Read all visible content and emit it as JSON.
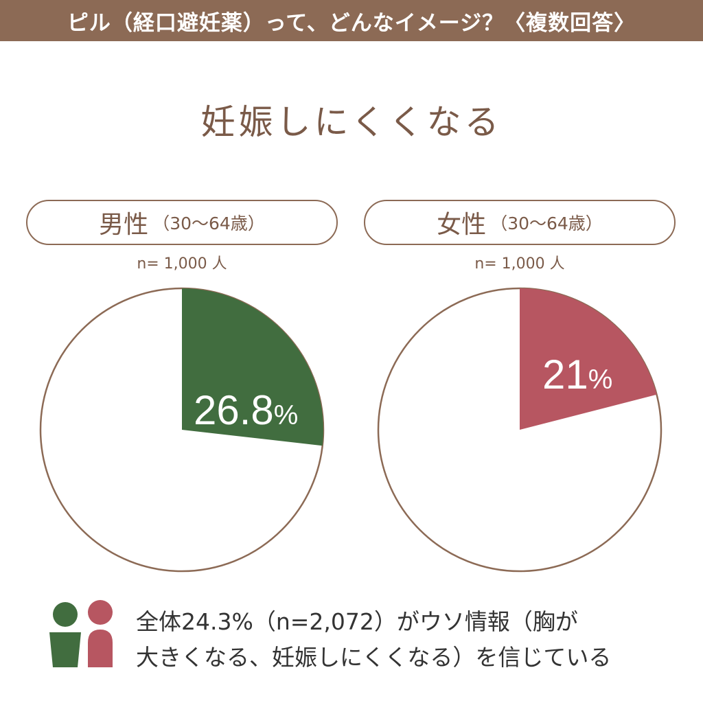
{
  "header": {
    "title": "ピル（経口避妊薬）って、どんなイメージ？〈複数回答〉"
  },
  "main_title": "妊娠しにくくなる",
  "groups": [
    {
      "label": "男性",
      "age_range": "（30〜64歳）",
      "sample": "n= 1,000 人",
      "value_label": "26.8",
      "unit": "%"
    },
    {
      "label": "女性",
      "age_range": "（30〜64歳）",
      "sample": "n= 1,000 人",
      "value_label": "21",
      "unit": "%"
    }
  ],
  "footer": {
    "line1": "全体24.3%（n=2,072）がウソ情報（胸が",
    "line2": "大きくなる、妊娠しにくくなる）を信じている"
  },
  "colors": {
    "header_bg": "#8c6a55",
    "title_text": "#7a5a48",
    "outline": "#8c6a55",
    "male": "#416d3f",
    "female": "#b75661"
  },
  "icons": [
    "person-male-icon",
    "person-female-icon"
  ],
  "chart_data": [
    {
      "type": "pie",
      "title": "男性",
      "categories": [
        "妊娠しにくくなる",
        ""
      ],
      "values": [
        26.8,
        73.2
      ],
      "colors": [
        "#416d3f",
        "#ffffff"
      ]
    },
    {
      "type": "pie",
      "title": "女性",
      "categories": [
        "妊娠しにくくなる",
        ""
      ],
      "values": [
        21,
        79
      ],
      "colors": [
        "#b75661",
        "#ffffff"
      ]
    }
  ]
}
